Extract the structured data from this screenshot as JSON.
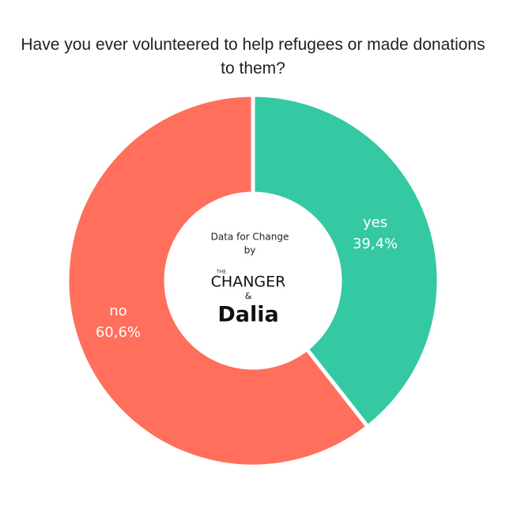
{
  "chart_data": {
    "type": "donut",
    "title": "Have you ever volunteered to help refugees or made donations to them?",
    "categories": [
      "yes",
      "no"
    ],
    "values": [
      39.4,
      60.6
    ],
    "value_labels": [
      "39,4%",
      "60,6%"
    ],
    "colors": [
      "#34c9a3",
      "#ff6f5b"
    ],
    "center_text": [
      "Data for Change",
      "by"
    ],
    "logo": {
      "small": "THE",
      "main": "CHANGER",
      "amp": "&",
      "brand": "Dalia"
    }
  }
}
